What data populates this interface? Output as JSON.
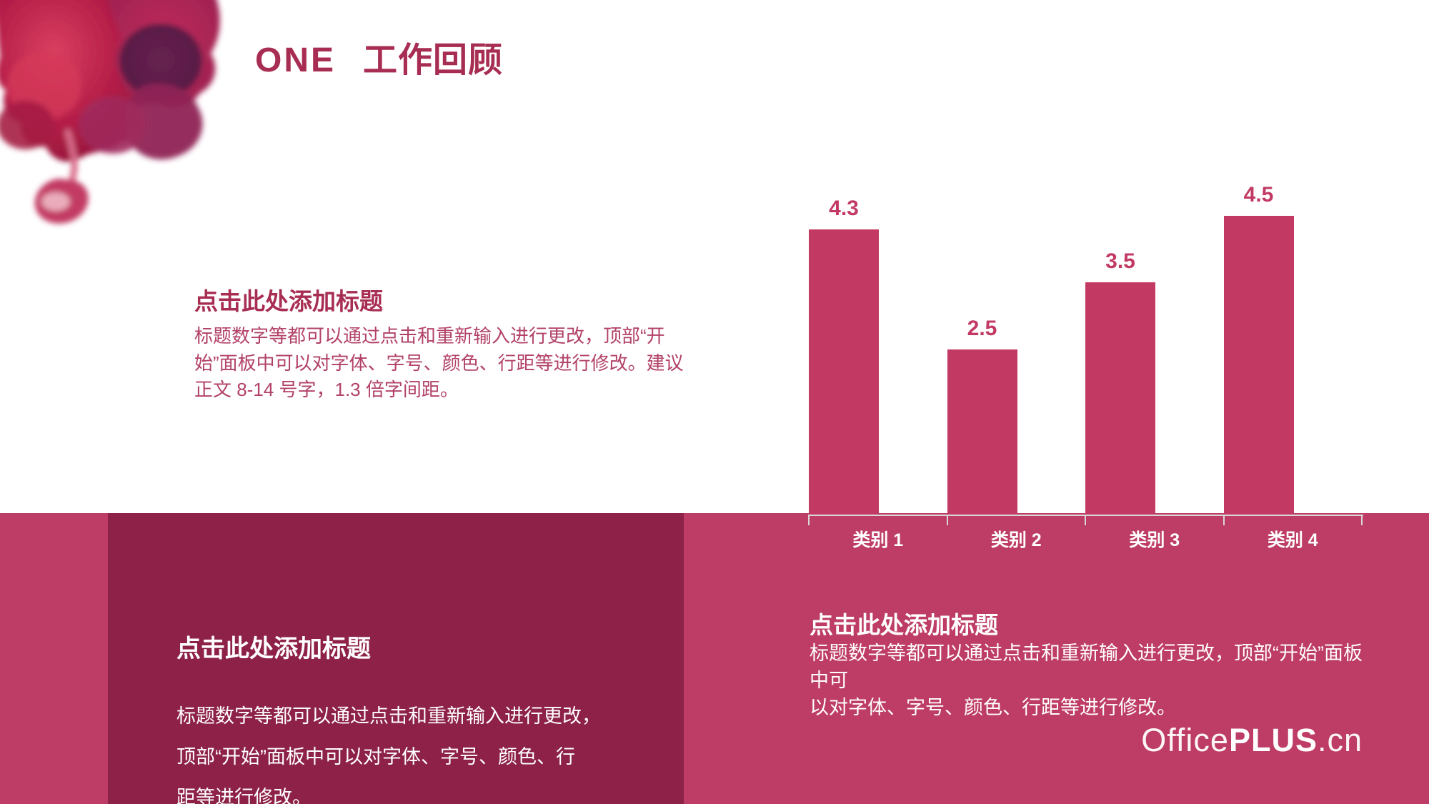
{
  "header": {
    "number": "ONE",
    "title": "工作回顾"
  },
  "sections": {
    "top_left": {
      "heading": "点击此处添加标题",
      "body": "标题数字等都可以通过点击和重新输入进行更改，顶部“开\n始”面板中可以对字体、字号、颜色、行距等进行修改。建议\n正文 8-14 号字，1.3 倍字间距。"
    },
    "bottom_left": {
      "heading": "点击此处添加标题",
      "body": "标题数字等都可以通过点击和重新输入进行更改，\n顶部“开始”面板中可以对字体、字号、颜色、行\n距等进行修改。"
    },
    "bottom_right": {
      "heading": "点击此处添加标题",
      "body": "标题数字等都可以通过点击和重新输入进行更改，顶部“开始”面板中可\n以对字体、字号、颜色、行距等进行修改。"
    }
  },
  "chart_data": {
    "type": "bar",
    "categories": [
      "类别 1",
      "类别 2",
      "类别 3",
      "类别 4"
    ],
    "values": [
      4.3,
      2.5,
      3.5,
      4.5
    ],
    "data_labels": [
      "4.3",
      "2.5",
      "3.5",
      "4.5"
    ],
    "title": "",
    "xlabel": "",
    "ylabel": "",
    "ylim": [
      0,
      5
    ],
    "gridlines": false,
    "legend": "none",
    "bar_color": "#c23a63",
    "value_label_color": "#c23a63",
    "category_label_color": "#ffffff",
    "axis_color": "#d8d8d8"
  },
  "logo": {
    "office": "Office",
    "plus": "PLUS",
    "cn": ".cn"
  },
  "colors": {
    "title_crimson": "#a82d52",
    "body_text": "#b24168",
    "pink_band": "#be3d66",
    "dark_panel": "#8d2147",
    "bar": "#c23a63",
    "white": "#ffffff"
  }
}
